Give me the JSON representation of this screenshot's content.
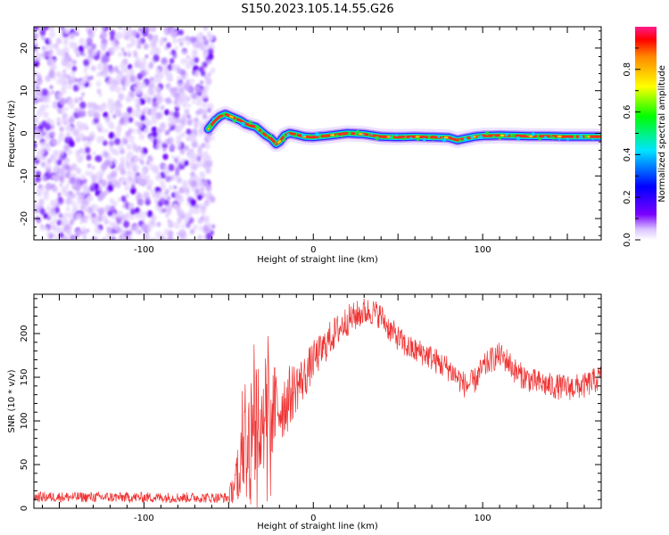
{
  "figure": {
    "title": "S150.2023.105.14.55.G26"
  },
  "chart_data": [
    {
      "type": "heatmap",
      "xlabel": "Height of straight line (km)",
      "ylabel": "Frequency (Hz)",
      "xlim": [
        -165,
        170
      ],
      "ylim": [
        -25,
        25
      ],
      "xticks": [
        -100,
        0,
        100
      ],
      "yticks": [
        -20,
        -10,
        0,
        10,
        20
      ],
      "noise_region_x": [
        -165,
        -60
      ],
      "ridge": {
        "x": [
          -62,
          -58,
          -55,
          -52,
          -49,
          -46,
          -43,
          -40,
          -37,
          -34,
          -31,
          -28,
          -25,
          -22,
          -20,
          -17,
          -14,
          -10,
          -5,
          0,
          10,
          20,
          30,
          40,
          50,
          60,
          70,
          80,
          85,
          90,
          95,
          100,
          110,
          120,
          130,
          140,
          150,
          160,
          170
        ],
        "y": [
          1,
          3,
          4,
          4.5,
          4,
          3.5,
          3,
          2.2,
          1.8,
          1.5,
          0.5,
          -0.5,
          -1.2,
          -2.5,
          -2,
          -0.5,
          0,
          -0.3,
          -0.8,
          -0.9,
          -0.5,
          0,
          -0.2,
          -0.8,
          -0.9,
          -0.8,
          -0.9,
          -1.0,
          -1.6,
          -1.2,
          -0.8,
          -0.6,
          -0.5,
          -0.6,
          -0.7,
          -0.7,
          -0.8,
          -0.8,
          -0.8
        ]
      },
      "colorbar": {
        "label": "Normalized spectral amplitude",
        "range": [
          0,
          1
        ],
        "ticks": [
          0.0,
          0.2,
          0.4,
          0.6,
          0.8
        ]
      }
    },
    {
      "type": "line",
      "xlabel": "Height of straight line (km)",
      "ylabel": "SNR (10 * v/v)",
      "xlim": [
        -165,
        170
      ],
      "ylim": [
        0,
        245
      ],
      "xticks": [
        -100,
        0,
        100
      ],
      "yticks": [
        0,
        50,
        100,
        150,
        200
      ],
      "color": "#ee3333",
      "envelope": {
        "x": [
          -165,
          -50,
          -45,
          -42,
          -38,
          -35,
          -30,
          -25,
          -20,
          -15,
          -10,
          -5,
          0,
          5,
          10,
          15,
          20,
          25,
          30,
          35,
          40,
          45,
          50,
          55,
          60,
          65,
          70,
          75,
          80,
          85,
          90,
          95,
          100,
          105,
          110,
          115,
          120,
          130,
          140,
          150,
          160,
          170
        ],
        "y": [
          13,
          12,
          35,
          80,
          90,
          100,
          105,
          110,
          115,
          125,
          140,
          150,
          170,
          180,
          195,
          205,
          215,
          220,
          225,
          225,
          220,
          205,
          195,
          185,
          180,
          178,
          172,
          165,
          160,
          150,
          140,
          145,
          160,
          170,
          175,
          168,
          155,
          145,
          140,
          138,
          140,
          150
        ]
      },
      "spread": {
        "x": [
          -165,
          -50,
          -45,
          -40,
          -35,
          -30,
          -25,
          -20,
          -10,
          0,
          20,
          40,
          80,
          120,
          170
        ],
        "y": [
          6,
          6,
          30,
          70,
          80,
          75,
          60,
          45,
          30,
          22,
          18,
          15,
          15,
          15,
          15
        ]
      }
    }
  ]
}
